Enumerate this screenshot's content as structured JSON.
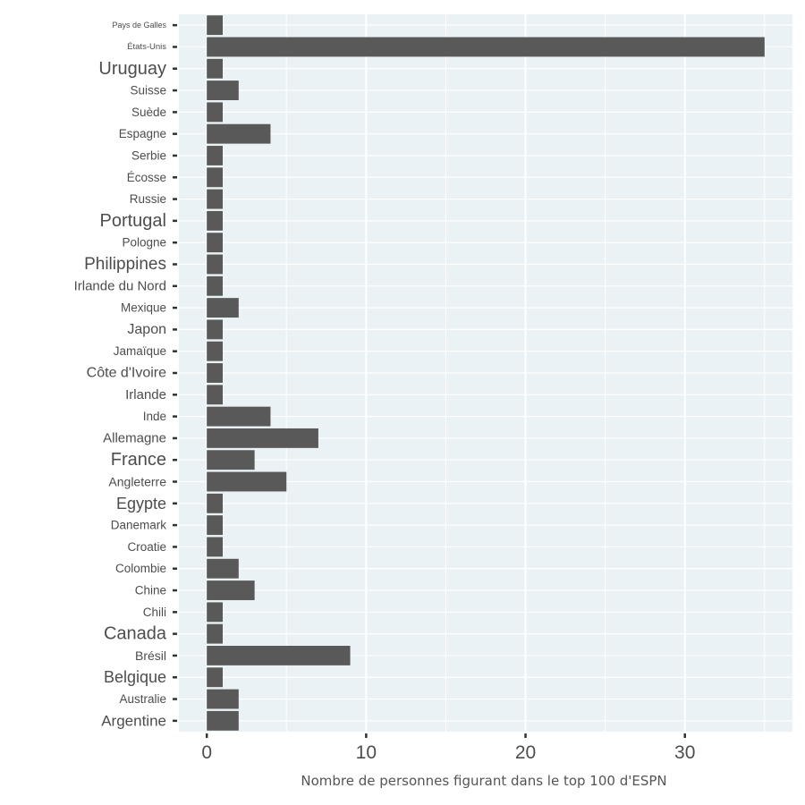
{
  "chart_data": {
    "type": "bar",
    "orientation": "horizontal",
    "categories": [
      "Argentine",
      "Australie",
      "Belgique",
      "Brésil",
      "Canada",
      "Chili",
      "Chine",
      "Colombie",
      "Croatie",
      "Danemark",
      "Egypte",
      "Angleterre",
      "France",
      "Allemagne",
      "Inde",
      "Irlande",
      "Côte d'Ivoire",
      "Jamaïque",
      "Japon",
      "Mexique",
      "Irlande du Nord",
      "Philippines",
      "Pologne",
      "Portugal",
      "Russie",
      "Écosse",
      "Serbie",
      "Espagne",
      "Suède",
      "Suisse",
      "Uruguay",
      "États-Unis",
      "Pays de Galles"
    ],
    "values": [
      2,
      2,
      1,
      9,
      1,
      1,
      3,
      2,
      1,
      1,
      1,
      5,
      3,
      7,
      4,
      1,
      1,
      1,
      1,
      2,
      1,
      1,
      1,
      1,
      1,
      1,
      1,
      4,
      1,
      2,
      1,
      35,
      1
    ],
    "title": "",
    "xlabel": "Nombre de personnes figurant dans le top 100 d'ESPN",
    "ylabel": "",
    "xlim": [
      -1.75,
      36.75
    ],
    "xticks": [
      0,
      10,
      20,
      30
    ],
    "grid": true,
    "legend": "none",
    "colors": {
      "bar": "#595959",
      "panel": "#eaf2f5",
      "grid": "#ffffff",
      "tick_text": "#4d4d4d",
      "axis_title": "#555555"
    }
  }
}
